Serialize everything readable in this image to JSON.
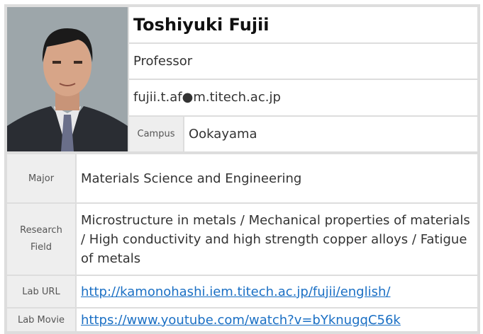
{
  "profile": {
    "name": "Toshiyuki Fujii",
    "position": "Professor",
    "email": "fujii.t.af●m.titech.ac.jp",
    "campus_label": "Campus",
    "campus": "Ookayama",
    "rows": [
      {
        "label": "Major",
        "value": "Materials Science and Engineering"
      },
      {
        "label": "Research Field",
        "value": "Microstructure in metals / Mechanical properties of materials / High conductivity and high strength copper alloys / Fatigue of metals"
      },
      {
        "label": "Lab URL",
        "value": "http://kamonohashi.iem.titech.ac.jp/fujii/english/"
      },
      {
        "label": "Lab Movie",
        "value": "https://www.youtube.com/watch?v=bYknugqC56k"
      }
    ]
  }
}
